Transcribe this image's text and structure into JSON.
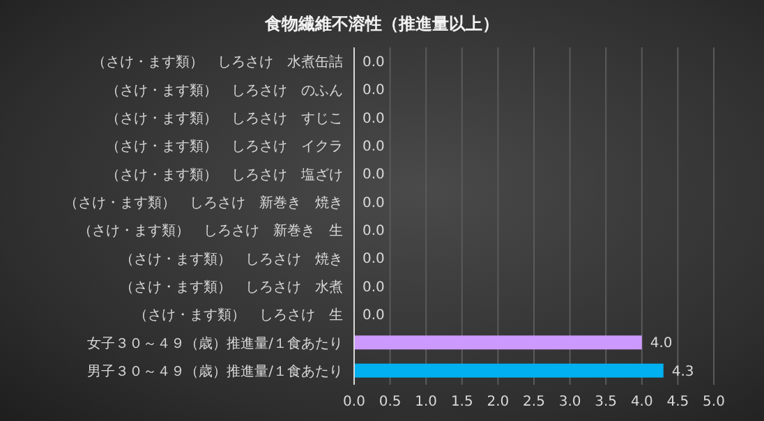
{
  "chart_data": {
    "type": "bar",
    "orientation": "horizontal",
    "title": "食物繊維不溶性（推進量以上）",
    "categories": [
      "（さけ・ます類）　しろさけ　水煮缶詰",
      "（さけ・ます類）　しろさけ　のふん",
      "（さけ・ます類）　しろさけ　すじこ",
      "（さけ・ます類）　しろさけ　イクラ",
      "（さけ・ます類）　しろさけ　塩ざけ",
      "（さけ・ます類）　しろさけ　新巻き　焼き",
      "（さけ・ます類）　しろさけ　新巻き　生",
      "（さけ・ます類）　しろさけ　焼き",
      "（さけ・ます類）　しろさけ　水煮",
      "（さけ・ます類）　しろさけ　生",
      "女子３０～４９（歳）推進量/１食あたり",
      "男子３０～４９（歳）推進量/１食あたり"
    ],
    "values": [
      0,
      0,
      0,
      0,
      0,
      0,
      0,
      0,
      0,
      0,
      4.0,
      4.3
    ],
    "value_labels": [
      "0.0",
      "0.0",
      "0.0",
      "0.0",
      "0.0",
      "0.0",
      "0.0",
      "0.0",
      "0.0",
      "0.0",
      "4.0",
      "4.3"
    ],
    "colors": [
      "#7f7f7f",
      "#7f7f7f",
      "#7f7f7f",
      "#7f7f7f",
      "#7f7f7f",
      "#7f7f7f",
      "#7f7f7f",
      "#7f7f7f",
      "#7f7f7f",
      "#7f7f7f",
      "#cc99ff",
      "#00b0f0"
    ],
    "xlim": [
      0,
      5
    ],
    "xticks": [
      {
        "value": 0,
        "label": "0.0"
      },
      {
        "value": 0.5,
        "label": "0.5"
      },
      {
        "value": 1,
        "label": "1.0"
      },
      {
        "value": 1.5,
        "label": "1.5"
      },
      {
        "value": 2,
        "label": "2.0"
      },
      {
        "value": 2.5,
        "label": "2.5"
      },
      {
        "value": 3,
        "label": "3.0"
      },
      {
        "value": 3.5,
        "label": "3.5"
      },
      {
        "value": 4,
        "label": "4.0"
      },
      {
        "value": 4.5,
        "label": "4.5"
      },
      {
        "value": 5,
        "label": "5.0"
      }
    ],
    "grid": "x"
  }
}
